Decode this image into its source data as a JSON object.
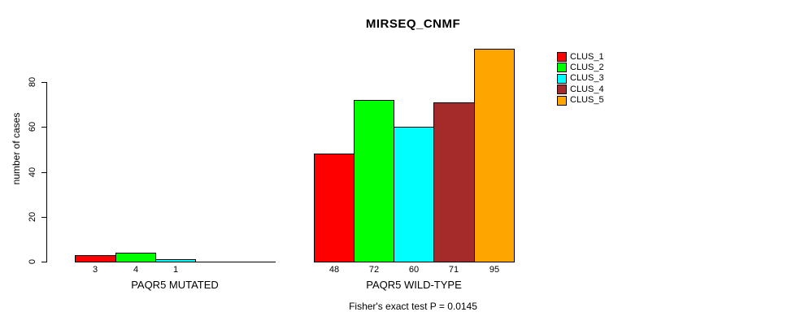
{
  "chart_data": {
    "type": "bar",
    "title": "MIRSEQ_CNMF",
    "ylabel": "number of cases",
    "xlabel": "",
    "yticks": [
      0,
      20,
      40,
      60,
      80
    ],
    "ylim": [
      0,
      95
    ],
    "grid": false,
    "legend_position": "top-right",
    "legend": [
      {
        "label": "CLUS_1",
        "color": "#FF0000"
      },
      {
        "label": "CLUS_2",
        "color": "#00FF00"
      },
      {
        "label": "CLUS_3",
        "color": "#00FFFF"
      },
      {
        "label": "CLUS_4",
        "color": "#A52A2A"
      },
      {
        "label": "CLUS_5",
        "color": "#FFA500"
      }
    ],
    "groups": [
      {
        "label": "PAQR5 MUTATED",
        "values": [
          3,
          4,
          1,
          0,
          0
        ]
      },
      {
        "label": "PAQR5 WILD-TYPE",
        "values": [
          48,
          72,
          60,
          71,
          95
        ]
      }
    ],
    "bar_value_labels": [
      [
        "3",
        "4",
        "1",
        "",
        ""
      ],
      [
        "48",
        "72",
        "60",
        "71",
        "95"
      ]
    ],
    "footnote": "Fisher's exact test P = 0.0145"
  }
}
